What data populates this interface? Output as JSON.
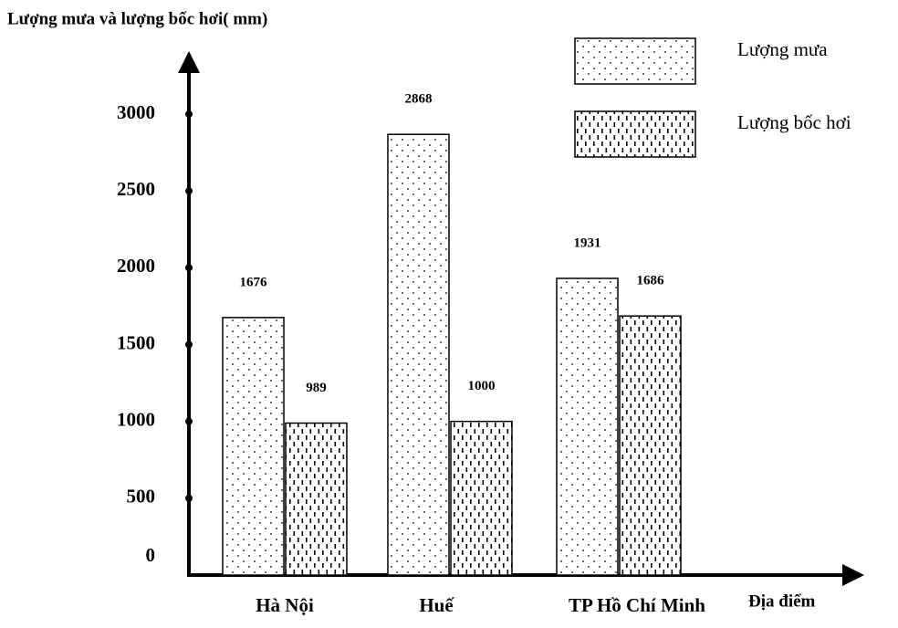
{
  "chart_data": {
    "type": "bar",
    "y_label": "Lượng mưa và lượng bốc hơi( mm)",
    "x_label": "Địa điểm",
    "categories": [
      "Hà Nội",
      "Huế",
      "TP Hồ Chí Minh"
    ],
    "series": [
      {
        "name": "Lượng mưa",
        "color": "#000000",
        "pattern": "dots",
        "values": [
          1676,
          2868,
          1931
        ]
      },
      {
        "name": "Lượng bốc hơi",
        "color": "#000000",
        "pattern": "dashes",
        "values": [
          989,
          1000,
          1686
        ]
      }
    ],
    "ylim": [
      0,
      3000
    ],
    "yticks": [
      0,
      500,
      1000,
      1500,
      2000,
      2500,
      3000
    ],
    "grid": false
  }
}
